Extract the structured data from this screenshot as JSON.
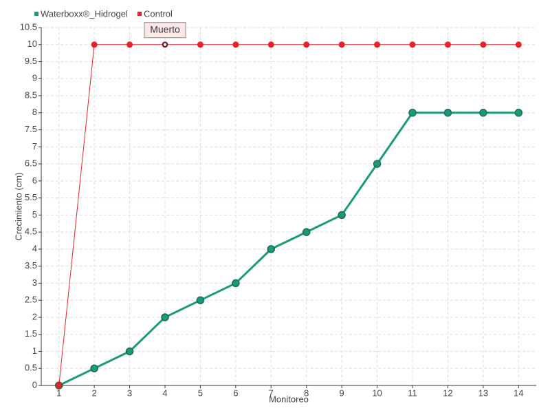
{
  "chart_data": {
    "type": "line",
    "x_label": "Monitoreo",
    "y_label": "Crecimiento (cm)",
    "x": [
      1,
      2,
      3,
      4,
      5,
      6,
      7,
      8,
      9,
      10,
      11,
      12,
      13,
      14
    ],
    "xlim": [
      0.5,
      14.5
    ],
    "xticks": [
      1,
      2,
      3,
      4,
      5,
      6,
      7,
      8,
      9,
      10,
      11,
      12,
      13,
      14
    ],
    "ylim": [
      0,
      10.5
    ],
    "yticks": [
      0,
      0.5,
      1,
      1.5,
      2,
      2.5,
      3,
      3.5,
      4,
      4.5,
      5,
      5.5,
      6,
      6.5,
      7,
      7.5,
      8,
      8.5,
      9,
      9.5,
      10,
      10.5
    ],
    "grid": true,
    "legend": "top-left",
    "series": [
      {
        "name": "Waterboxx®_Hidrogel",
        "color": "#1a9a7a",
        "values": [
          0,
          0.5,
          1,
          2,
          2.5,
          3,
          4,
          4.5,
          5,
          6.5,
          8,
          8,
          8,
          8
        ]
      },
      {
        "name": "Control",
        "color": "#e8202a",
        "values": [
          0,
          10,
          10,
          10,
          10,
          10,
          10,
          10,
          10,
          10,
          10,
          10,
          10,
          10
        ]
      }
    ],
    "annotations": [
      {
        "text": "Muerto",
        "x": 4,
        "y": 10
      }
    ]
  }
}
